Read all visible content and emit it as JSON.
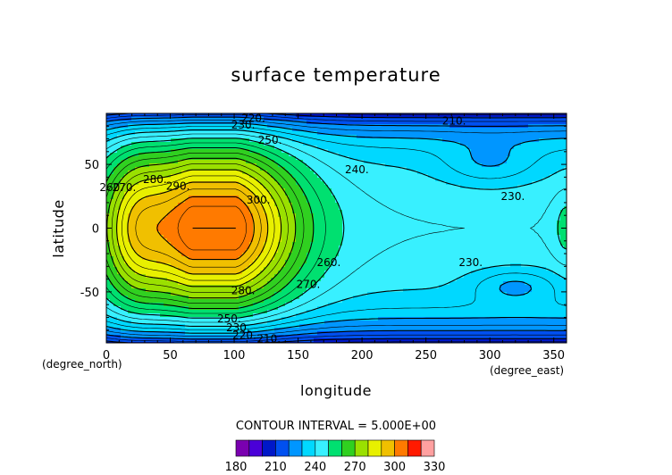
{
  "chart_data": {
    "type": "heatmap",
    "title": "surface temperature",
    "xlabel": "longitude",
    "ylabel": "latitude",
    "x_units": "(degree_east)",
    "y_units": "(degree_north)",
    "xlim": [
      0,
      360
    ],
    "ylim": [
      -90,
      90
    ],
    "x_ticks": [
      0,
      50,
      100,
      150,
      200,
      250,
      300,
      350
    ],
    "y_ticks": [
      -50,
      0,
      50
    ],
    "contour_interval_text": "CONTOUR INTERVAL = 5.000E+00",
    "colorbar": {
      "levels": [
        180,
        190,
        200,
        210,
        220,
        230,
        240,
        250,
        260,
        270,
        280,
        290,
        300,
        310,
        320,
        330
      ],
      "tick_labels": [
        "180",
        "210",
        "240",
        "270",
        "300",
        "330"
      ],
      "colors": [
        "#7a00b0",
        "#4a00d8",
        "#0018c8",
        "#0050f0",
        "#0096ff",
        "#00d8ff",
        "#38f0ff",
        "#00e070",
        "#30d020",
        "#9ae000",
        "#e8f000",
        "#f0c000",
        "#ff7a00",
        "#ff1a00",
        "#ffa0a0"
      ]
    },
    "contour_labels": [
      {
        "text": "220.",
        "lon": 115,
        "lat": 86
      },
      {
        "text": "230.",
        "lon": 107,
        "lat": 81
      },
      {
        "text": "250.",
        "lon": 128,
        "lat": 69
      },
      {
        "text": "210.",
        "lon": 272,
        "lat": 84
      },
      {
        "text": "240.",
        "lon": 196,
        "lat": 46
      },
      {
        "text": "230.",
        "lon": 318,
        "lat": 25
      },
      {
        "text": "290.",
        "lon": 56,
        "lat": 33
      },
      {
        "text": "280.",
        "lon": 38,
        "lat": 38
      },
      {
        "text": "270.",
        "lon": 14,
        "lat": 32
      },
      {
        "text": "260.",
        "lon": 4,
        "lat": 32
      },
      {
        "text": "300.",
        "lon": 119,
        "lat": 22
      },
      {
        "text": "230.",
        "lon": 285,
        "lat": -27
      },
      {
        "text": "260.",
        "lon": 174,
        "lat": -27
      },
      {
        "text": "270.",
        "lon": 158,
        "lat": -44
      },
      {
        "text": "280.",
        "lon": 107,
        "lat": -49
      },
      {
        "text": "250.",
        "lon": 96,
        "lat": -71
      },
      {
        "text": "230.",
        "lon": 103,
        "lat": -78
      },
      {
        "text": "210.",
        "lon": 127,
        "lat": -87
      },
      {
        "text": "220.",
        "lon": 108,
        "lat": -84
      }
    ]
  }
}
